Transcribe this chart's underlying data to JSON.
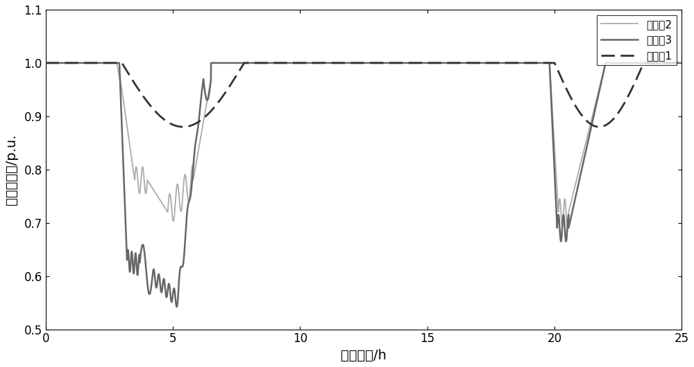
{
  "title": "",
  "xlabel": "循环周期/h",
  "ylabel": "端电压幅值/p.u.",
  "xlim": [
    0,
    25
  ],
  "ylim": [
    0.5,
    1.1
  ],
  "xticks": [
    0,
    5,
    10,
    15,
    20,
    25
  ],
  "yticks": [
    0.5,
    0.6,
    0.7,
    0.8,
    0.9,
    1.0,
    1.1
  ],
  "legend_labels": [
    "电池箱1",
    "电池箱2",
    "电池箱3"
  ],
  "background_color": "#ffffff",
  "figsize": [
    10.0,
    5.3
  ],
  "dpi": 100
}
